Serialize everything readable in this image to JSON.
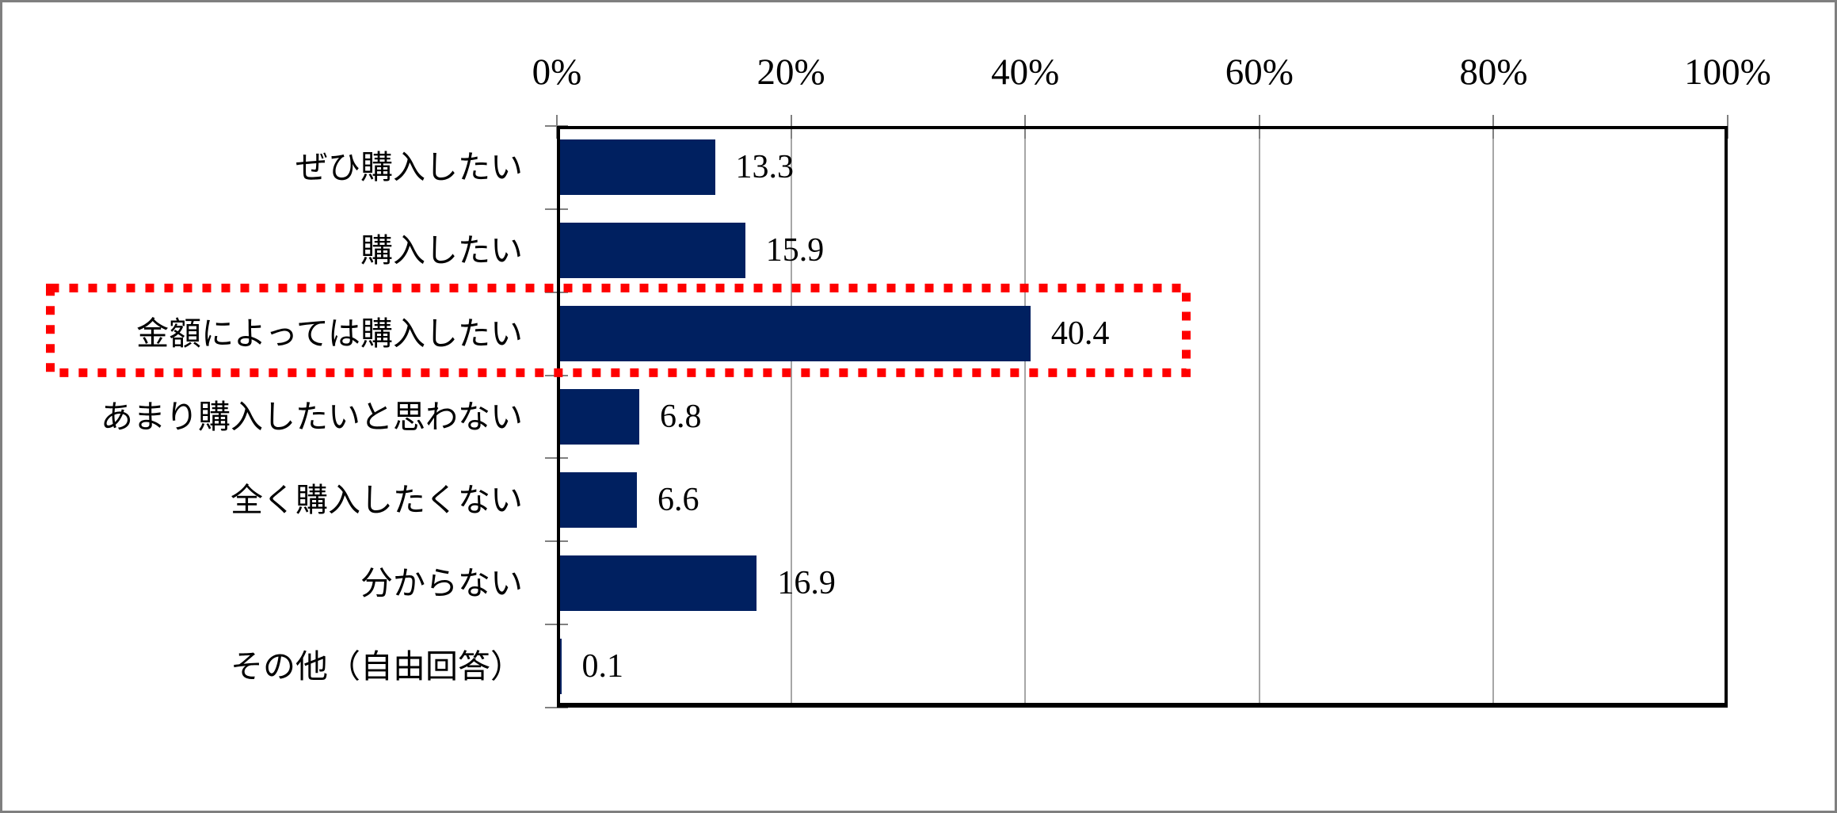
{
  "chart_data": {
    "type": "bar",
    "orientation": "horizontal",
    "title": "",
    "categories": [
      "ぜひ購入したい",
      "購入したい",
      "金額によっては購入したい",
      "あまり購入したいと思わない",
      "全く購入したくない",
      "分からない",
      "その他（自由回答）"
    ],
    "values": [
      13.3,
      15.9,
      40.4,
      6.8,
      6.6,
      16.9,
      0.1
    ],
    "value_labels": [
      "13.3",
      "15.9",
      "40.4",
      "6.8",
      "6.6",
      "16.9",
      "0.1"
    ],
    "x_axis": {
      "position": "top",
      "min": 0,
      "max": 100,
      "tick_labels": [
        "0%",
        "20%",
        "40%",
        "60%",
        "80%",
        "100%"
      ],
      "tick_step_percent": 20
    },
    "ylabel": "",
    "xlabel": "",
    "grid": "vertical-only",
    "legend": "none",
    "highlight": {
      "index": 2,
      "category": "金額によっては購入したい",
      "value": 40.4,
      "style": "red dotted rectangle around row"
    },
    "colors": {
      "bar": "#002060",
      "highlight_border": "#FF0000",
      "gridline": "#A6A6A6",
      "tick": "#808080",
      "plot_border": "#000000",
      "figure_border": "#7F7F7F",
      "background": "#FFFFFF",
      "text": "#000000"
    }
  }
}
